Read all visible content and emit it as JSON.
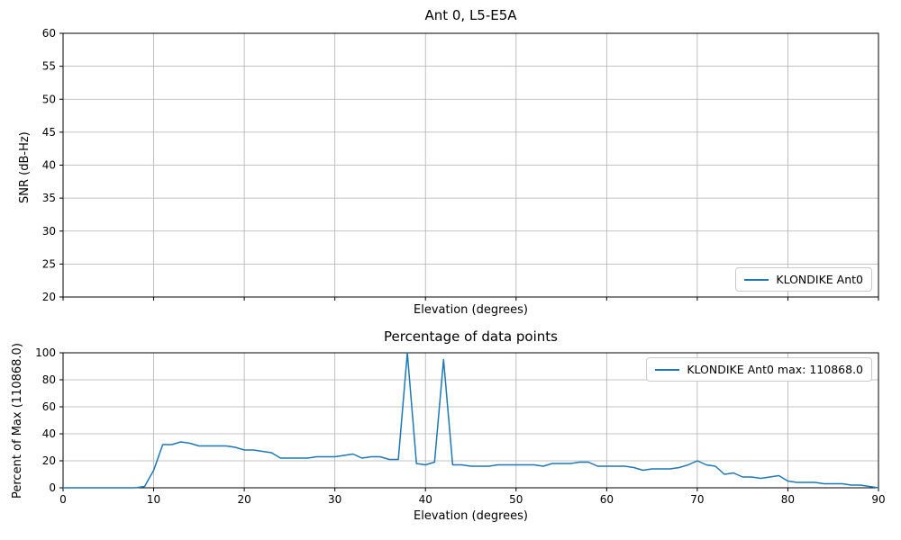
{
  "figure": {
    "background": "#ffffff",
    "accent_color": "#1f77b4",
    "grid_color": "#b0b0b0",
    "frame_color": "#000000"
  },
  "chart_data": [
    {
      "type": "line",
      "title": "Ant 0, L5-E5A",
      "xlabel": "Elevation (degrees)",
      "ylabel": "SNR (dB-Hz)",
      "xlim": [
        0,
        90
      ],
      "ylim": [
        20,
        60
      ],
      "xticks": [
        0,
        10,
        20,
        30,
        40,
        50,
        60,
        70,
        80,
        90
      ],
      "show_xtick_labels": false,
      "yticks": [
        20,
        25,
        30,
        35,
        40,
        45,
        50,
        55,
        60
      ],
      "grid": true,
      "legend": {
        "position": "lower right",
        "entries": [
          {
            "label": "KLONDIKE Ant0",
            "color": "#1f77b4"
          }
        ]
      },
      "series": [
        {
          "name": "KLONDIKE Ant0",
          "color": "#1f77b4",
          "x_start": 0,
          "x_step": 1,
          "values": []
        }
      ]
    },
    {
      "type": "line",
      "title": "Percentage of data points",
      "xlabel": "Elevation (degrees)",
      "ylabel": "Percent of Max (110868.0)",
      "xlim": [
        0,
        90
      ],
      "ylim": [
        0,
        100
      ],
      "xticks": [
        0,
        10,
        20,
        30,
        40,
        50,
        60,
        70,
        80,
        90
      ],
      "show_xtick_labels": true,
      "yticks": [
        0,
        20,
        40,
        60,
        80,
        100
      ],
      "grid": true,
      "max_value": "110868.0",
      "legend": {
        "position": "upper right",
        "entries": [
          {
            "label": "KLONDIKE Ant0 max: 110868.0",
            "color": "#1f77b4"
          }
        ]
      },
      "series": [
        {
          "name": "KLONDIKE Ant0",
          "color": "#1f77b4",
          "x_start": 0,
          "x_step": 1,
          "values": [
            0,
            0,
            0,
            0,
            0,
            0,
            0,
            0,
            0,
            1,
            13,
            32,
            32,
            34,
            33,
            31,
            31,
            31,
            31,
            30,
            28,
            28,
            27,
            26,
            22,
            22,
            22,
            22,
            23,
            23,
            23,
            24,
            25,
            22,
            23,
            23,
            21,
            21,
            100,
            18,
            17,
            19,
            95,
            17,
            17,
            16,
            16,
            16,
            17,
            17,
            17,
            17,
            17,
            16,
            18,
            18,
            18,
            19,
            19,
            16,
            16,
            16,
            16,
            15,
            13,
            14,
            14,
            14,
            15,
            17,
            20,
            17,
            16,
            10,
            11,
            8,
            8,
            7,
            8,
            9,
            5,
            4,
            4,
            4,
            3,
            3,
            3,
            2,
            2,
            1,
            0
          ]
        }
      ]
    }
  ]
}
